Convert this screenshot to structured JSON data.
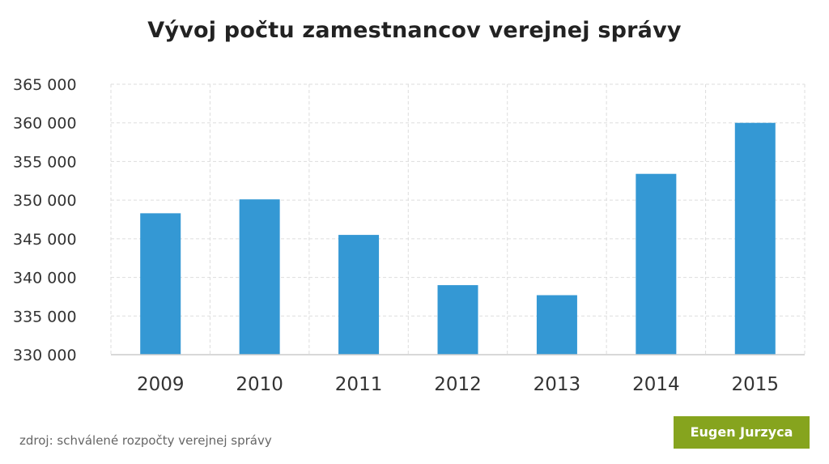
{
  "chart_data": {
    "type": "bar",
    "title": "Vývoj počtu zamestnancov verejnej správy",
    "categories": [
      "2009",
      "2010",
      "2011",
      "2012",
      "2013",
      "2014",
      "2015"
    ],
    "values": [
      348300,
      350100,
      345500,
      339000,
      337700,
      353400,
      360000
    ],
    "xlabel": "",
    "ylabel": "",
    "ylim": [
      330000,
      365000
    ],
    "yticks": [
      330000,
      335000,
      340000,
      345000,
      350000,
      355000,
      360000,
      365000
    ],
    "ytick_labels": [
      "330 000",
      "335 000",
      "340 000",
      "345 000",
      "350 000",
      "355 000",
      "360 000",
      "365 000"
    ],
    "grid": true,
    "legend": "none",
    "bar_color": "#3498d4"
  },
  "footer": {
    "source": "zdroj: schválené rozpočty verejnej správy",
    "author": "Eugen Jurzyca",
    "author_color": "#86a41e"
  }
}
